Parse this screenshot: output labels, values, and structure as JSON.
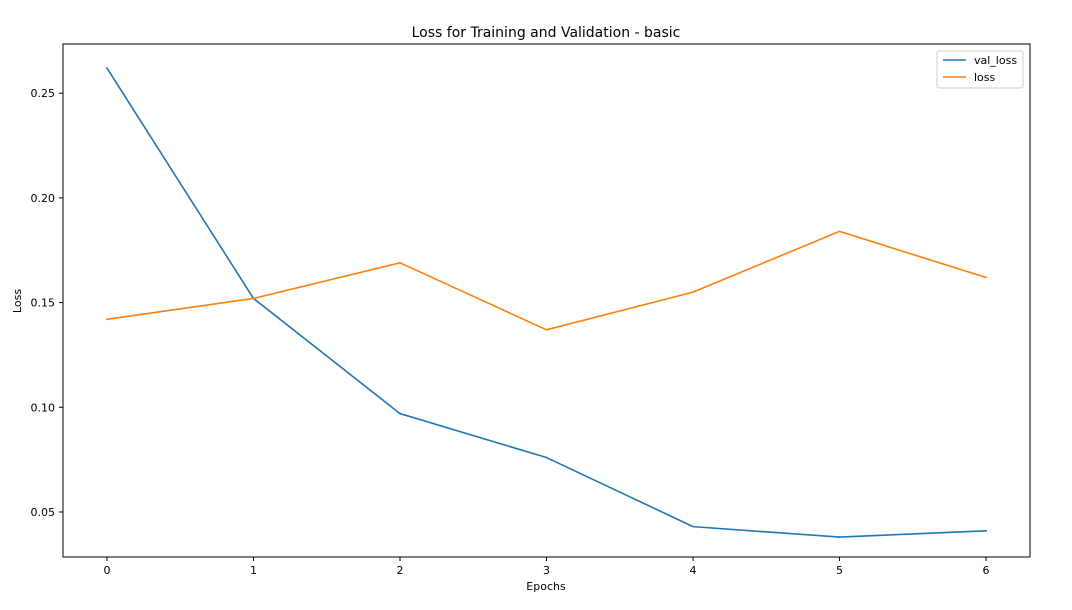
{
  "chart_data": {
    "type": "line",
    "title": "Loss for Training and Validation - basic",
    "xlabel": "Epochs",
    "ylabel": "Loss",
    "x": [
      0,
      1,
      2,
      3,
      4,
      5,
      6
    ],
    "xlim": [
      -0.3,
      6.3
    ],
    "ylim": [
      0.0285,
      0.2735
    ],
    "x_ticks": [
      0,
      1,
      2,
      3,
      4,
      5,
      6
    ],
    "y_ticks": [
      0.05,
      0.1,
      0.15,
      0.2,
      0.25
    ],
    "y_tick_labels": [
      "0.05",
      "0.10",
      "0.15",
      "0.20",
      "0.25"
    ],
    "grid": false,
    "legend_position": "top-right",
    "series": [
      {
        "name": "val_loss",
        "color": "#1f77b4",
        "values": [
          0.262,
          0.152,
          0.097,
          0.076,
          0.043,
          0.038,
          0.041
        ]
      },
      {
        "name": "loss",
        "color": "#ff7f0e",
        "values": [
          0.142,
          0.152,
          0.169,
          0.137,
          0.155,
          0.184,
          0.162
        ]
      }
    ]
  }
}
